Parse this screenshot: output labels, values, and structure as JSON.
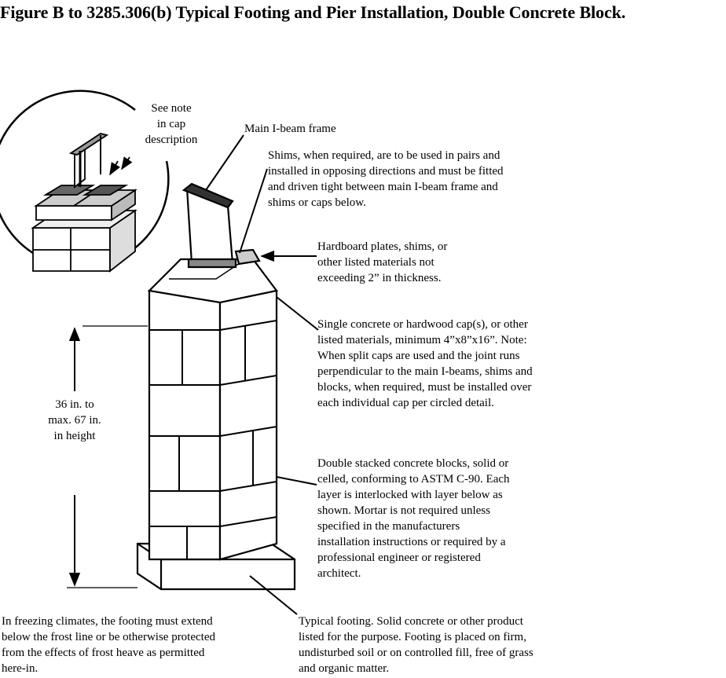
{
  "title": "Figure B to 3285.306(b) Typical Footing and Pier Installation, Double Concrete Block.",
  "labels": {
    "see_note": [
      "See note",
      "in cap",
      "description"
    ],
    "main_ibeam": "Main I-beam frame",
    "shims": [
      "Shims, when required, are to be used in pairs and",
      "installed in opposing directions and must be fitted",
      "and driven tight between main I-beam frame and",
      "shims or caps below."
    ],
    "hardboard": [
      "Hardboard plates, shims, or",
      "other listed materials not",
      "exceeding 2” in thickness."
    ],
    "cap": [
      "Single concrete or hardwood cap(s), or other",
      "listed materials, minimum 4”x8”x16”. Note:",
      "When split caps are used and the joint runs",
      "perpendicular to the main I-beams, shims and",
      "blocks, when required, must be installed over",
      "each individual cap per circled detail."
    ],
    "height": [
      "36 in. to",
      "max. 67 in.",
      "in height"
    ],
    "blocks": [
      "Double stacked concrete blocks, solid or",
      "celled, conforming to ASTM C-90. Each",
      "layer is interlocked with layer below as",
      "shown. Mortar is not required unless",
      "specified in the manufacturers",
      "installation instructions or required by a",
      "professional engineer or registered",
      "architect."
    ],
    "frost": [
      "In freezing climates, the footing must extend",
      "below the frost line or be otherwise protected",
      "from the effects of frost heave as permitted",
      "here-in."
    ],
    "footing": [
      "Typical footing. Solid concrete or other product",
      "listed for the purpose. Footing is placed on firm,",
      "undisturbed soil or on controlled fill, free of grass",
      "and organic matter."
    ]
  }
}
